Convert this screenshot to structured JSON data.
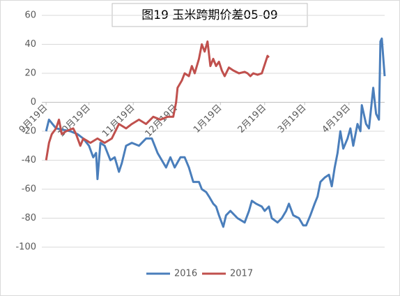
{
  "chart_data": {
    "type": "line",
    "title": "图19 玉米跨期价差05-09",
    "xlim": [
      -3,
      237
    ],
    "xticks": [
      {
        "value": 0,
        "label": "9月19日"
      },
      {
        "value": 30,
        "label": "10月19日"
      },
      {
        "value": 61,
        "label": "11月19日"
      },
      {
        "value": 91,
        "label": "12月19日"
      },
      {
        "value": 122,
        "label": "1月19日"
      },
      {
        "value": 153,
        "label": "2月19日"
      },
      {
        "value": 181,
        "label": "3月19日"
      },
      {
        "value": 212,
        "label": "4月19日"
      }
    ],
    "ylim": [
      -100,
      60
    ],
    "yticks": [
      -100,
      -80,
      -60,
      -40,
      -20,
      0,
      20,
      40,
      60
    ],
    "grid": true,
    "legend": "bottom",
    "series": [
      {
        "name": "2016",
        "color": "#4a7ebb",
        "x": [
          0,
          2,
          7,
          17,
          22,
          26,
          30,
          33,
          35,
          36,
          38,
          41,
          45,
          48,
          51,
          53,
          56,
          60,
          65,
          70,
          74,
          78,
          81,
          84,
          87,
          90,
          94,
          97,
          100,
          103,
          107,
          109,
          112,
          114,
          117,
          119,
          121,
          124,
          126,
          129,
          134,
          139,
          142,
          144,
          147,
          151,
          153,
          156,
          158,
          162,
          165,
          168,
          170,
          173,
          177,
          180,
          182,
          185,
          188,
          190,
          192,
          195,
          198,
          200,
          202,
          204,
          206,
          208,
          211,
          213,
          215,
          218,
          220,
          221,
          224,
          226,
          229,
          231,
          233,
          234,
          235,
          237
        ],
        "values": [
          -20,
          -12,
          -18,
          -20,
          -22,
          -25,
          -30,
          -38,
          -35,
          -53,
          -28,
          -30,
          -40,
          -38,
          -48,
          -42,
          -30,
          -28,
          -30,
          -25,
          -25,
          -35,
          -40,
          -45,
          -38,
          -45,
          -38,
          -38,
          -45,
          -55,
          -55,
          -60,
          -62,
          -65,
          -70,
          -72,
          -78,
          -86,
          -78,
          -75,
          -80,
          -83,
          -75,
          -68,
          -70,
          -72,
          -75,
          -72,
          -80,
          -83,
          -80,
          -75,
          -70,
          -78,
          -80,
          -85,
          -85,
          -78,
          -70,
          -65,
          -55,
          -52,
          -50,
          -58,
          -45,
          -35,
          -20,
          -32,
          -25,
          -18,
          -30,
          -15,
          -20,
          -2,
          -15,
          -18,
          10,
          -8,
          -12,
          42,
          44,
          18
        ]
      },
      {
        "name": "2017",
        "color": "#c0504d",
        "x": [
          0,
          2,
          4,
          7,
          9,
          11,
          14,
          19,
          21,
          24,
          26,
          31,
          36,
          41,
          46,
          51,
          56,
          60,
          65,
          70,
          75,
          80,
          85,
          89,
          91,
          92,
          95,
          97,
          100,
          102,
          104,
          107,
          109,
          111,
          113,
          115,
          117,
          119,
          121,
          123,
          125,
          128,
          131,
          135,
          139,
          141,
          143,
          145,
          148,
          151,
          153,
          155,
          156
        ],
        "values": [
          -40,
          -28,
          -22,
          -18,
          -12,
          -22,
          -20,
          -18,
          -22,
          -30,
          -25,
          -28,
          -25,
          -28,
          -25,
          -15,
          -18,
          -15,
          -12,
          -15,
          -10,
          -12,
          -10,
          -10,
          0,
          10,
          15,
          20,
          18,
          25,
          20,
          30,
          40,
          35,
          42,
          25,
          30,
          25,
          28,
          22,
          18,
          24,
          22,
          20,
          21,
          20,
          18,
          20,
          19,
          20,
          26,
          32,
          31
        ]
      }
    ]
  }
}
